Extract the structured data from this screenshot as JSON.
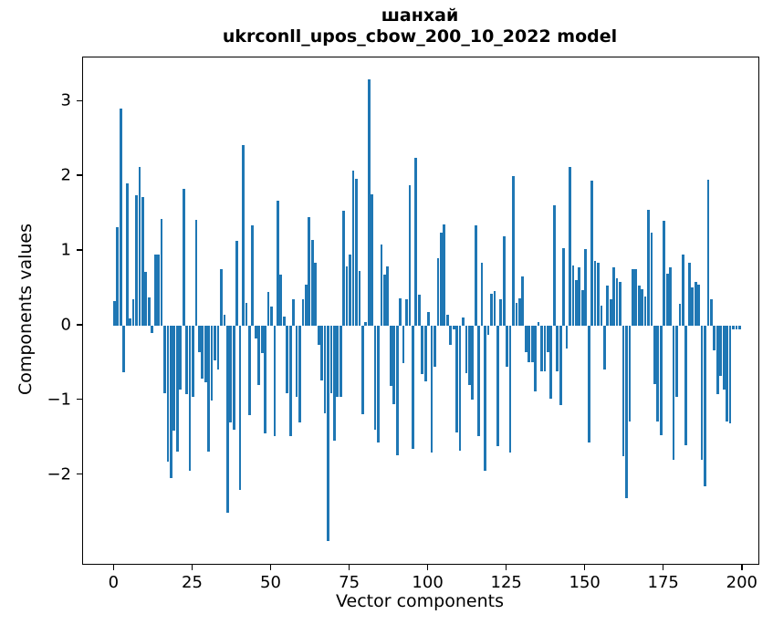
{
  "chart_data": {
    "type": "bar",
    "title_line1": "шанхай",
    "title_line2": "ukrconll_upos_cbow_200_10_2022 model",
    "xlabel": "Vector components",
    "ylabel": "Components values",
    "x_tick_labels": [
      "0",
      "25",
      "50",
      "75",
      "100",
      "125",
      "150",
      "175",
      "200"
    ],
    "x_tick_values": [
      0,
      25,
      50,
      75,
      100,
      125,
      150,
      175,
      200
    ],
    "y_tick_labels": [
      "−2",
      "−1",
      "0",
      "1",
      "2",
      "3"
    ],
    "y_tick_values": [
      -2,
      -1,
      0,
      1,
      2,
      3
    ],
    "xlim": [
      -10,
      205
    ],
    "ylim": [
      -3.19,
      3.59
    ],
    "bar_color": "#1f77b4",
    "bar_width_data_units": 0.8,
    "grid": false,
    "legend": null,
    "x_start_index": 0,
    "values": [
      0.33,
      1.32,
      2.9,
      -0.62,
      1.9,
      0.1,
      0.35,
      1.75,
      2.13,
      1.72,
      0.72,
      0.38,
      -0.1,
      0.95,
      0.95,
      1.43,
      -0.9,
      -1.82,
      -2.04,
      -1.41,
      -1.69,
      -0.86,
      1.83,
      -0.92,
      -1.94,
      -0.96,
      1.42,
      -0.35,
      -0.71,
      -0.76,
      -1.69,
      -1.0,
      -0.47,
      -0.59,
      0.76,
      0.14,
      -2.5,
      -1.3,
      -1.4,
      1.14,
      -2.2,
      2.42,
      0.3,
      -1.2,
      1.34,
      -0.17,
      -0.8,
      -0.37,
      -1.44,
      0.45,
      0.25,
      -1.48,
      1.67,
      0.68,
      0.12,
      -0.9,
      -1.48,
      0.35,
      -0.95,
      -1.3,
      0.35,
      0.55,
      1.45,
      1.15,
      0.84,
      -0.26,
      -0.73,
      -1.18,
      -2.88,
      -0.9,
      -1.54,
      -0.95,
      -0.95,
      1.54,
      0.79,
      0.95,
      2.07,
      1.96,
      0.73,
      -1.19,
      0.05,
      3.3,
      1.76,
      -1.39,
      -1.56,
      1.08,
      0.68,
      0.79,
      -0.81,
      -1.05,
      -1.74,
      0.37,
      -0.5,
      0.35,
      1.88,
      -1.65,
      2.25,
      0.41,
      -0.65,
      -0.75,
      0.18,
      -1.7,
      -0.55,
      0.9,
      1.25,
      1.35,
      0.15,
      -0.26,
      -0.05,
      -1.43,
      -1.67,
      0.11,
      -0.64,
      -0.79,
      -0.99,
      1.34,
      -1.48,
      0.84,
      -1.94,
      -0.13,
      0.42,
      0.46,
      -1.61,
      0.35,
      1.19,
      -0.55,
      -1.7,
      2.0,
      0.3,
      0.37,
      0.66,
      -0.35,
      -0.49,
      -0.49,
      -0.88,
      0.05,
      -0.61,
      -0.61,
      -0.35,
      -0.98,
      1.61,
      -0.61,
      -1.06,
      1.04,
      -0.31,
      2.12,
      0.8,
      0.61,
      0.78,
      0.47,
      1.02,
      -1.57,
      1.94,
      0.86,
      0.84,
      0.27,
      -0.59,
      0.53,
      0.35,
      0.78,
      0.63,
      0.59,
      -1.75,
      -2.31,
      -1.29,
      0.76,
      0.76,
      0.53,
      0.49,
      0.39,
      1.55,
      1.25,
      -0.78,
      -1.29,
      -1.47,
      1.4,
      0.69,
      0.78,
      -1.8,
      -0.96,
      0.29,
      0.95,
      -1.6,
      0.84,
      0.51,
      0.59,
      0.55,
      -1.8,
      -2.15,
      1.95,
      0.35,
      -0.33,
      -0.92,
      -0.67,
      -0.86,
      -1.29,
      -1.31,
      -0.05,
      -0.05,
      -0.05
    ]
  }
}
